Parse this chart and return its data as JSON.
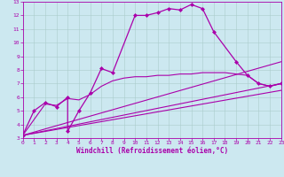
{
  "xlabel": "Windchill (Refroidissement éolien,°C)",
  "bg_color": "#cce8f0",
  "grid_color": "#aacccc",
  "line_color": "#aa00aa",
  "xlim": [
    0,
    23
  ],
  "ylim": [
    3,
    13
  ],
  "xticks": [
    0,
    1,
    2,
    3,
    4,
    5,
    6,
    7,
    8,
    9,
    10,
    11,
    12,
    13,
    14,
    15,
    16,
    17,
    18,
    19,
    20,
    21,
    22,
    23
  ],
  "yticks": [
    3,
    4,
    5,
    6,
    7,
    8,
    9,
    10,
    11,
    12,
    13
  ],
  "tick_fontsize": 4.5,
  "xlabel_fontsize": 5.5,
  "series": [
    {
      "x": [
        0,
        1,
        2,
        3,
        4,
        4,
        5,
        6,
        7,
        8,
        10,
        11,
        12,
        13,
        14,
        15,
        16,
        17,
        19,
        20,
        21,
        22,
        23
      ],
      "y": [
        3.2,
        5.0,
        5.6,
        5.3,
        6.0,
        3.5,
        5.0,
        6.3,
        8.1,
        7.8,
        12.0,
        12.0,
        12.2,
        12.5,
        12.4,
        12.8,
        12.5,
        10.8,
        8.6,
        7.6,
        7.0,
        6.8,
        7.0
      ],
      "marker": "D",
      "markersize": 2.0,
      "linewidth": 0.9,
      "linestyle": "-"
    },
    {
      "x": [
        0,
        2,
        3,
        4,
        5,
        6,
        7,
        8,
        9,
        10,
        11,
        12,
        13,
        14,
        15,
        16,
        17,
        18,
        19,
        20,
        21,
        22,
        23
      ],
      "y": [
        3.2,
        5.5,
        5.4,
        5.9,
        5.8,
        6.2,
        6.8,
        7.2,
        7.4,
        7.5,
        7.5,
        7.6,
        7.6,
        7.7,
        7.7,
        7.8,
        7.8,
        7.8,
        7.7,
        7.6,
        7.0,
        6.8,
        7.0
      ],
      "marker": null,
      "markersize": 0,
      "linewidth": 0.8,
      "linestyle": "-"
    },
    {
      "x": [
        0,
        23
      ],
      "y": [
        3.2,
        8.6
      ],
      "marker": null,
      "markersize": 0,
      "linewidth": 0.8,
      "linestyle": "-"
    },
    {
      "x": [
        0,
        23
      ],
      "y": [
        3.2,
        7.0
      ],
      "marker": null,
      "markersize": 0,
      "linewidth": 0.8,
      "linestyle": "-"
    },
    {
      "x": [
        0,
        23
      ],
      "y": [
        3.2,
        6.5
      ],
      "marker": null,
      "markersize": 0,
      "linewidth": 0.8,
      "linestyle": "-"
    }
  ]
}
